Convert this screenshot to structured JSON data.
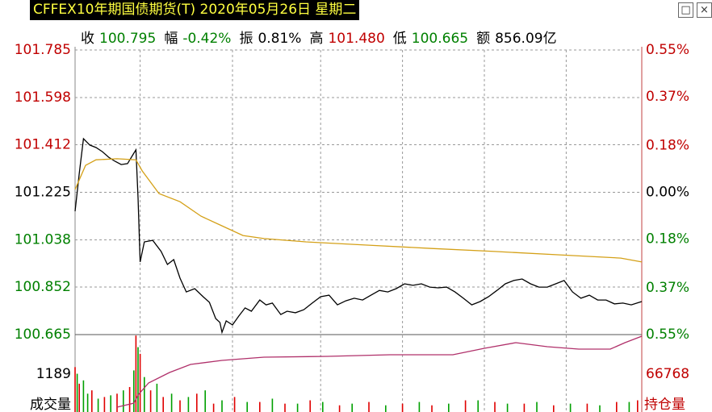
{
  "title": "CFFEX10年期国债期货(T) 2020年05月26日 星期二",
  "stats": [
    {
      "label": "收",
      "value": "100.795",
      "color": "#008000"
    },
    {
      "label": "幅",
      "value": "-0.42%",
      "color": "#008000"
    },
    {
      "label": "振",
      "value": "0.81%",
      "color": "#000000"
    },
    {
      "label": "高",
      "value": "101.480",
      "color": "#c00000"
    },
    {
      "label": "低",
      "value": "100.665",
      "color": "#008000"
    },
    {
      "label": "额",
      "value": "856.09亿",
      "color": "#000000"
    }
  ],
  "chart_data": [
    {
      "type": "line",
      "xlim": [
        0,
        270
      ],
      "xticks": [
        31,
        75,
        117,
        156,
        195,
        234
      ],
      "ylim": [
        100.665,
        101.785
      ],
      "yticks": [
        101.785,
        101.598,
        101.412,
        101.225,
        101.038,
        100.852,
        100.665
      ],
      "y2lim": [
        -0.55,
        0.55
      ],
      "y2ticks": [
        {
          "value": 0.55,
          "label": "0.55%"
        },
        {
          "value": 0.37,
          "label": "0.37%"
        },
        {
          "value": 0.18,
          "label": "0.18%"
        },
        {
          "value": 0,
          "label": "0.00%"
        },
        {
          "value": -0.18,
          "label": "0.18%"
        },
        {
          "value": -0.37,
          "label": "0.37%"
        },
        {
          "value": -0.55,
          "label": "0.55%"
        }
      ],
      "grid": true,
      "series": [
        {
          "color": "#000000",
          "x": [
            0,
            2,
            4,
            7,
            10,
            13,
            16,
            19,
            22,
            25,
            28,
            29,
            30,
            31,
            33,
            37,
            41,
            44,
            47,
            50,
            53,
            57,
            61,
            64,
            67,
            69,
            70,
            72,
            75,
            78,
            81,
            84,
            88,
            91,
            94,
            98,
            101,
            105,
            109,
            113,
            117,
            121,
            125,
            129,
            133,
            137,
            141,
            145,
            149,
            153,
            157,
            161,
            165,
            169,
            173,
            177,
            181,
            185,
            189,
            193,
            197,
            201,
            205,
            209,
            213,
            217,
            221,
            225,
            229,
            233,
            237,
            241,
            245,
            249,
            253,
            257,
            261,
            265,
            270
          ],
          "values": [
            101.15,
            101.3,
            101.436,
            101.411,
            101.401,
            101.385,
            101.363,
            101.347,
            101.334,
            101.338,
            101.379,
            101.392,
            101.204,
            100.951,
            101.03,
            101.036,
            100.992,
            100.941,
            100.96,
            100.887,
            100.833,
            100.846,
            100.814,
            100.792,
            100.728,
            100.713,
            100.674,
            100.719,
            100.703,
            100.738,
            100.77,
            100.757,
            100.801,
            100.782,
            100.789,
            100.744,
            100.757,
            100.751,
            100.763,
            100.789,
            100.814,
            100.82,
            100.782,
            100.798,
            100.808,
            100.801,
            100.82,
            100.839,
            100.833,
            100.846,
            100.865,
            100.859,
            100.865,
            100.852,
            100.849,
            100.852,
            100.833,
            100.808,
            100.782,
            100.795,
            100.814,
            100.839,
            100.865,
            100.878,
            100.884,
            100.865,
            100.852,
            100.852,
            100.865,
            100.878,
            100.833,
            100.808,
            100.82,
            100.801,
            100.801,
            100.786,
            100.789,
            100.782,
            100.795
          ]
        },
        {
          "color": "#d4a017",
          "x": [
            0,
            5,
            10,
            20,
            29,
            32,
            40,
            50,
            60,
            70,
            80,
            90,
            110,
            140,
            170,
            200,
            230,
            260,
            270
          ],
          "values": [
            101.236,
            101.331,
            101.353,
            101.357,
            101.353,
            101.309,
            101.22,
            101.188,
            101.131,
            101.093,
            101.055,
            101.043,
            101.03,
            101.017,
            101.004,
            100.992,
            100.979,
            100.966,
            100.951
          ]
        }
      ]
    },
    {
      "type": "bar",
      "xlim": [
        0,
        270
      ],
      "ylim": [
        0,
        2378
      ],
      "yticks": [
        1189
      ],
      "y2lim": [
        60000,
        73536
      ],
      "y2ticks": [
        66768
      ],
      "ylabel": "成交量",
      "y2label": "持仓量",
      "series": [
        {
          "color": "#e00000",
          "x": [
            0,
            2,
            8,
            14,
            20,
            26,
            29,
            31,
            36,
            42,
            50,
            58,
            66,
            76,
            88,
            100,
            112,
            126,
            140,
            156,
            170,
            186,
            200,
            214,
            228,
            244,
            258,
            268
          ],
          "values": [
            1400,
            900,
            700,
            500,
            600,
            800,
            2350,
            1800,
            700,
            500,
            400,
            600,
            300,
            500,
            350,
            300,
            400,
            250,
            350,
            300,
            250,
            400,
            350,
            300,
            250,
            300,
            350,
            400
          ]
        },
        {
          "color": "#00a000",
          "x": [
            1,
            4,
            6,
            11,
            17,
            23,
            28,
            30,
            33,
            39,
            46,
            54,
            62,
            70,
            82,
            94,
            106,
            118,
            132,
            148,
            164,
            178,
            192,
            206,
            220,
            236,
            250,
            264
          ],
          "values": [
            1200,
            1000,
            600,
            450,
            550,
            700,
            1300,
            2000,
            1100,
            900,
            600,
            500,
            700,
            400,
            350,
            450,
            300,
            350,
            300,
            250,
            350,
            300,
            400,
            300,
            350,
            300,
            250,
            350
          ]
        },
        {
          "type": "line",
          "axis": "y2",
          "color": "#b0306a",
          "x": [
            20,
            28,
            30,
            35,
            45,
            55,
            70,
            90,
            120,
            150,
            180,
            195,
            210,
            225,
            240,
            255,
            262,
            270
          ],
          "values": [
            61105,
            61795,
            63176,
            65248,
            67043,
            68424,
            69115,
            69667,
            69805,
            70081,
            70081,
            71186,
            72153,
            71462,
            71048,
            71048,
            72153,
            73258
          ]
        }
      ]
    }
  ]
}
